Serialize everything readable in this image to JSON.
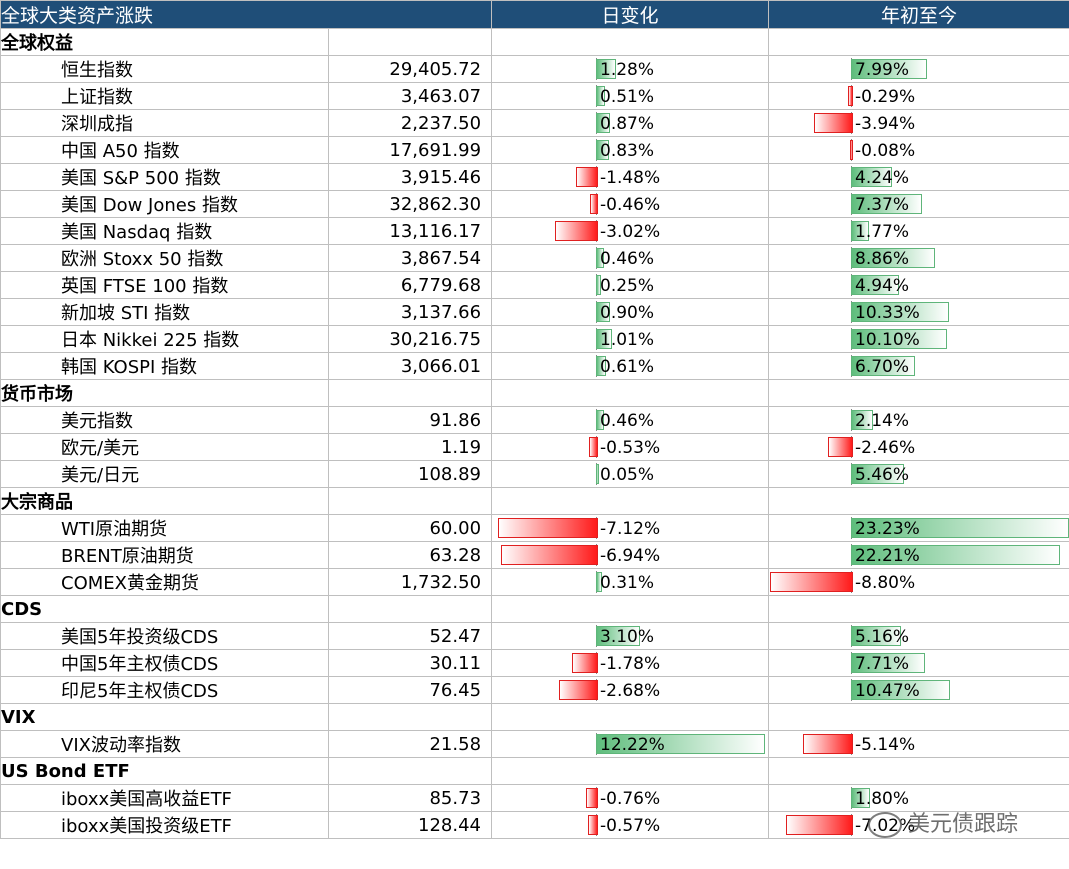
{
  "header": {
    "title": "全球大类资产涨跌",
    "col_day": "日变化",
    "col_ytd": "年初至今"
  },
  "colors": {
    "header_bg": "#1f4e78",
    "positive": "#5ebd7c",
    "negative": "#ff1a1a"
  },
  "sections": [
    {
      "title": "全球权益",
      "rows": [
        {
          "name": "恒生指数",
          "value": "29,405.72",
          "day": "1.28%",
          "day_v": 1.28,
          "ytd": "7.99%",
          "ytd_v": 7.99
        },
        {
          "name": "上证指数",
          "value": "3,463.07",
          "day": "0.51%",
          "day_v": 0.51,
          "ytd": "-0.29%",
          "ytd_v": -0.29
        },
        {
          "name": "深圳成指",
          "value": "2,237.50",
          "day": "0.87%",
          "day_v": 0.87,
          "ytd": "-3.94%",
          "ytd_v": -3.94
        },
        {
          "name": "中国 A50 指数",
          "value": "17,691.99",
          "day": "0.83%",
          "day_v": 0.83,
          "ytd": "-0.08%",
          "ytd_v": -0.08
        },
        {
          "name": "美国 S&P 500 指数",
          "value": "3,915.46",
          "day": "-1.48%",
          "day_v": -1.48,
          "ytd": "4.24%",
          "ytd_v": 4.24
        },
        {
          "name": "美国 Dow Jones 指数",
          "value": "32,862.30",
          "day": "-0.46%",
          "day_v": -0.46,
          "ytd": "7.37%",
          "ytd_v": 7.37
        },
        {
          "name": "美国 Nasdaq 指数",
          "value": "13,116.17",
          "day": "-3.02%",
          "day_v": -3.02,
          "ytd": "1.77%",
          "ytd_v": 1.77
        },
        {
          "name": "欧洲 Stoxx 50 指数",
          "value": "3,867.54",
          "day": "0.46%",
          "day_v": 0.46,
          "ytd": "8.86%",
          "ytd_v": 8.86
        },
        {
          "name": "英国 FTSE 100 指数",
          "value": "6,779.68",
          "day": "0.25%",
          "day_v": 0.25,
          "ytd": "4.94%",
          "ytd_v": 4.94
        },
        {
          "name": "新加坡 STI 指数",
          "value": "3,137.66",
          "day": "0.90%",
          "day_v": 0.9,
          "ytd": "10.33%",
          "ytd_v": 10.33
        },
        {
          "name": "日本 Nikkei 225 指数",
          "value": "30,216.75",
          "day": "1.01%",
          "day_v": 1.01,
          "ytd": "10.10%",
          "ytd_v": 10.1
        },
        {
          "name": "韩国 KOSPI 指数",
          "value": "3,066.01",
          "day": "0.61%",
          "day_v": 0.61,
          "ytd": "6.70%",
          "ytd_v": 6.7
        }
      ]
    },
    {
      "title": "货币市场",
      "rows": [
        {
          "name": "美元指数",
          "value": "91.86",
          "day": "0.46%",
          "day_v": 0.46,
          "ytd": "2.14%",
          "ytd_v": 2.14
        },
        {
          "name": "欧元/美元",
          "value": "1.19",
          "day": "-0.53%",
          "day_v": -0.53,
          "ytd": "-2.46%",
          "ytd_v": -2.46
        },
        {
          "name": "美元/日元",
          "value": "108.89",
          "day": "0.05%",
          "day_v": 0.05,
          "ytd": "5.46%",
          "ytd_v": 5.46
        }
      ]
    },
    {
      "title": "大宗商品",
      "rows": [
        {
          "name": "WTI原油期货",
          "value": "60.00",
          "day": "-7.12%",
          "day_v": -7.12,
          "ytd": "23.23%",
          "ytd_v": 23.23
        },
        {
          "name": "BRENT原油期货",
          "value": "63.28",
          "day": "-6.94%",
          "day_v": -6.94,
          "ytd": "22.21%",
          "ytd_v": 22.21
        },
        {
          "name": "COMEX黄金期货",
          "value": "1,732.50",
          "day": "0.31%",
          "day_v": 0.31,
          "ytd": "-8.80%",
          "ytd_v": -8.8
        }
      ]
    },
    {
      "title": "CDS",
      "rows": [
        {
          "name": "美国5年投资级CDS",
          "value": "52.47",
          "day": "3.10%",
          "day_v": 3.1,
          "ytd": "5.16%",
          "ytd_v": 5.16
        },
        {
          "name": "中国5年主权债CDS",
          "value": "30.11",
          "day": "-1.78%",
          "day_v": -1.78,
          "ytd": "7.71%",
          "ytd_v": 7.71
        },
        {
          "name": "印尼5年主权债CDS",
          "value": "76.45",
          "day": "-2.68%",
          "day_v": -2.68,
          "ytd": "10.47%",
          "ytd_v": 10.47
        }
      ]
    },
    {
      "title": "VIX",
      "rows": [
        {
          "name": "VIX波动率指数",
          "value": "21.58",
          "day": "12.22%",
          "day_v": 12.22,
          "ytd": "-5.14%",
          "ytd_v": -5.14
        }
      ]
    },
    {
      "title": "US Bond ETF",
      "rows": [
        {
          "name": "iboxx美国高收益ETF",
          "value": "85.73",
          "day": "-0.76%",
          "day_v": -0.76,
          "ytd": "1.80%",
          "ytd_v": 1.8
        },
        {
          "name": "iboxx美国投资级ETF",
          "value": "128.44",
          "day": "-0.57%",
          "day_v": -0.57,
          "ytd": "-7.02%",
          "ytd_v": -7.02
        }
      ]
    }
  ],
  "watermark": {
    "text": "美元债跟踪",
    "icon": "wechat-icon"
  }
}
